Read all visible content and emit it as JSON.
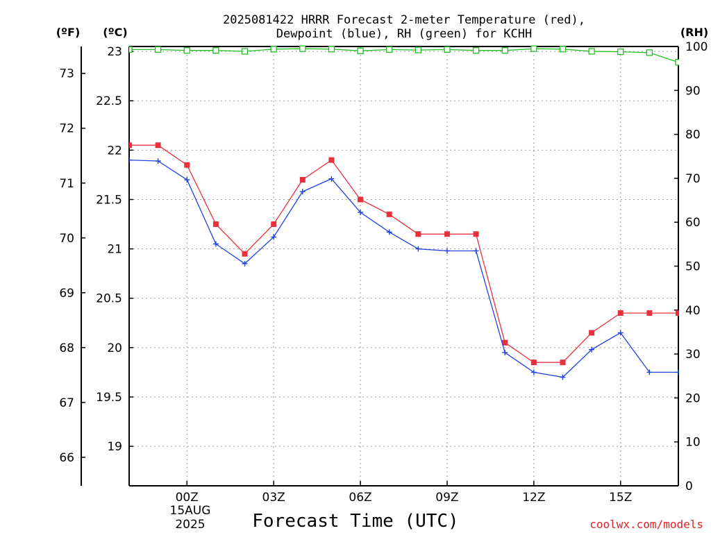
{
  "chart_data": {
    "type": "line",
    "title_line1": "2025081422 HRRR Forecast 2-meter Temperature (red),",
    "title_line2": "Dewpoint (blue), RH (green) for KCHH",
    "xlabel": "Forecast Time (UTC)",
    "credit": "coolwx.com/models",
    "unit_left_f": "(ºF)",
    "unit_left_c": "(ºC)",
    "unit_right": "(RH)",
    "x": [
      -1,
      0,
      1,
      2,
      3,
      4,
      5,
      6,
      7,
      8,
      9,
      10,
      11,
      12,
      13,
      14,
      15,
      16,
      17,
      18
    ],
    "xlim": [
      -1,
      18
    ],
    "x_ticks": [
      {
        "x": 1,
        "label": "00Z"
      },
      {
        "x": 4,
        "label": "03Z"
      },
      {
        "x": 7,
        "label": "06Z"
      },
      {
        "x": 10,
        "label": "09Z"
      },
      {
        "x": 13,
        "label": "12Z"
      },
      {
        "x": 16,
        "label": "15Z"
      }
    ],
    "date_label_1": "15AUG",
    "date_label_2": "2025",
    "ylim_c": [
      18.6,
      23.05
    ],
    "y_ticks_c": [
      19,
      19.5,
      20,
      20.5,
      21,
      21.5,
      22,
      22.5,
      23
    ],
    "y_ticks_c_labels": [
      "19",
      "19.5",
      "20",
      "20.5",
      "21",
      "21.5",
      "22",
      "22.5",
      "23"
    ],
    "y_ticks_f": [
      66,
      67,
      68,
      69,
      70,
      71,
      72,
      73
    ],
    "y_ticks_f_labels": [
      "66",
      "67",
      "68",
      "69",
      "70",
      "71",
      "72",
      "73"
    ],
    "ylim_rh": [
      0,
      100
    ],
    "y_ticks_rh": [
      0,
      10,
      20,
      30,
      40,
      50,
      60,
      70,
      80,
      90,
      100
    ],
    "y_ticks_rh_labels": [
      "0",
      "10",
      "20",
      "30",
      "40",
      "50",
      "60",
      "70",
      "80",
      "90",
      "100"
    ],
    "series": [
      {
        "color": "#e8303a",
        "marker": "square",
        "axis": "c",
        "values": [
          22.05,
          22.05,
          21.85,
          21.25,
          20.95,
          21.25,
          21.7,
          21.9,
          21.5,
          21.35,
          21.15,
          21.15,
          21.15,
          20.05,
          19.85,
          19.85,
          20.15,
          20.35,
          20.35,
          20.35
        ]
      },
      {
        "color": "#2040e0",
        "marker": "plus",
        "axis": "c",
        "values": [
          21.9,
          21.89,
          21.7,
          21.05,
          20.85,
          21.12,
          21.58,
          21.71,
          21.37,
          21.17,
          21.0,
          20.98,
          20.98,
          19.95,
          19.75,
          19.7,
          19.98,
          20.15,
          19.75,
          19.75
        ]
      },
      {
        "color": "#22c022",
        "marker": "open-square",
        "axis": "rh",
        "values": [
          99.3,
          99.3,
          99.1,
          99.1,
          98.9,
          99.4,
          99.5,
          99.4,
          99.0,
          99.3,
          99.2,
          99.3,
          99.1,
          99.1,
          99.5,
          99.4,
          98.9,
          98.8,
          98.6,
          96.4
        ]
      }
    ]
  }
}
